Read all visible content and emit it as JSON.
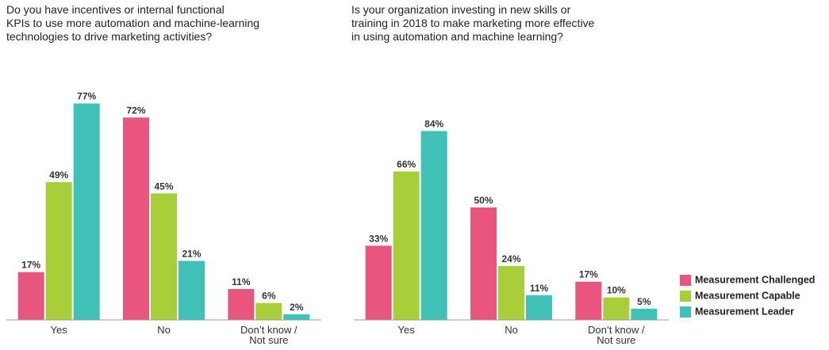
{
  "chart_data": [
    {
      "type": "bar",
      "title": "Do you have incentives or internal functional\nKPIs to use more automation and machine-learning\ntechnologies to drive marketing activities?",
      "categories": [
        "Yes",
        "No",
        "Don’t know /\nNot sure"
      ],
      "series": [
        {
          "color": "#e8557f",
          "values": [
            17,
            72,
            11
          ],
          "value_labels": [
            "17%",
            "72%",
            "11%"
          ]
        },
        {
          "color": "#a8cf3a",
          "values": [
            49,
            45,
            6
          ],
          "value_labels": [
            "49%",
            "45%",
            "6%"
          ]
        },
        {
          "color": "#3fc1b7",
          "values": [
            77,
            21,
            2
          ],
          "value_labels": [
            "77%",
            "21%",
            "2%"
          ]
        }
      ],
      "ylim": [
        0,
        80
      ]
    },
    {
      "type": "bar",
      "title": "Is your organization investing in new skills or\ntraining in 2018 to make marketing more effective\nin using automation and machine learning?",
      "categories": [
        "Yes",
        "No",
        "Don’t know /\nNot sure"
      ],
      "series": [
        {
          "name": "Measurement Challenged",
          "color": "#e8557f",
          "values": [
            33,
            50,
            17
          ],
          "value_labels": [
            "33%",
            "50%",
            "17%"
          ]
        },
        {
          "name": "Measurement Capable",
          "color": "#a8cf3a",
          "values": [
            66,
            24,
            10
          ],
          "value_labels": [
            "66%",
            "24%",
            "10%"
          ]
        },
        {
          "name": "Measurement Leader",
          "color": "#3fc1b7",
          "values": [
            84,
            11,
            5
          ],
          "value_labels": [
            "84%",
            "11%",
            "5%"
          ]
        }
      ],
      "ylim": [
        0,
        100
      ]
    }
  ]
}
